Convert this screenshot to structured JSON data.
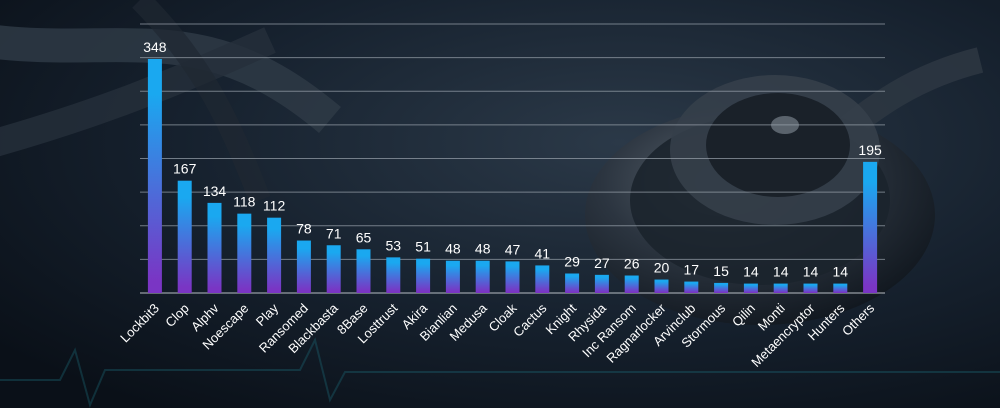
{
  "chart_data": {
    "type": "bar",
    "categories": [
      "Lockbit3",
      "Clop",
      "Alphv",
      "Noescape",
      "Play",
      "Ransomed",
      "Blackbasta",
      "8Base",
      "Losttrust",
      "Akira",
      "Bianlian",
      "Medusa",
      "Cloak",
      "Cactus",
      "Knight",
      "Rhysida",
      "Inc Ransom",
      "Ragnarlocker",
      "Arvinclub",
      "Stormous",
      "Qilin",
      "Monti",
      "Metaencryptor",
      "Hunters",
      "Others"
    ],
    "values": [
      348,
      167,
      134,
      118,
      112,
      78,
      71,
      65,
      53,
      51,
      48,
      48,
      47,
      41,
      29,
      27,
      26,
      20,
      17,
      15,
      14,
      14,
      14,
      14,
      195
    ],
    "ylim": [
      0,
      400
    ],
    "grid": true,
    "bar_gradient": [
      "#1aa8f0",
      "#7a35c4"
    ],
    "grid_color": "#9aa3ad"
  }
}
